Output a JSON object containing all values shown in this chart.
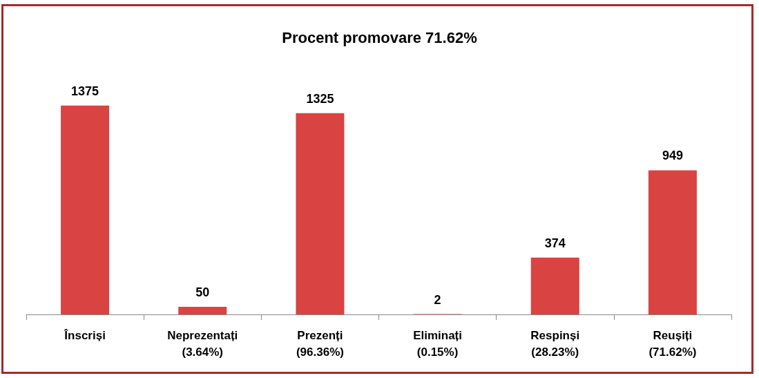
{
  "chart_data": {
    "type": "bar",
    "title": "Procent promovare 71.62%",
    "categories": [
      "Înscriși",
      "Neprezentați\n(3.64%)",
      "Prezenți\n(96.36%)",
      "Eliminați\n(0.15%)",
      "Respinși\n(28.23%)",
      "Reușiți\n(71.62%)"
    ],
    "values": [
      1375,
      50,
      1325,
      2,
      374,
      949
    ],
    "color": "#d94341",
    "data_labels": true
  }
}
